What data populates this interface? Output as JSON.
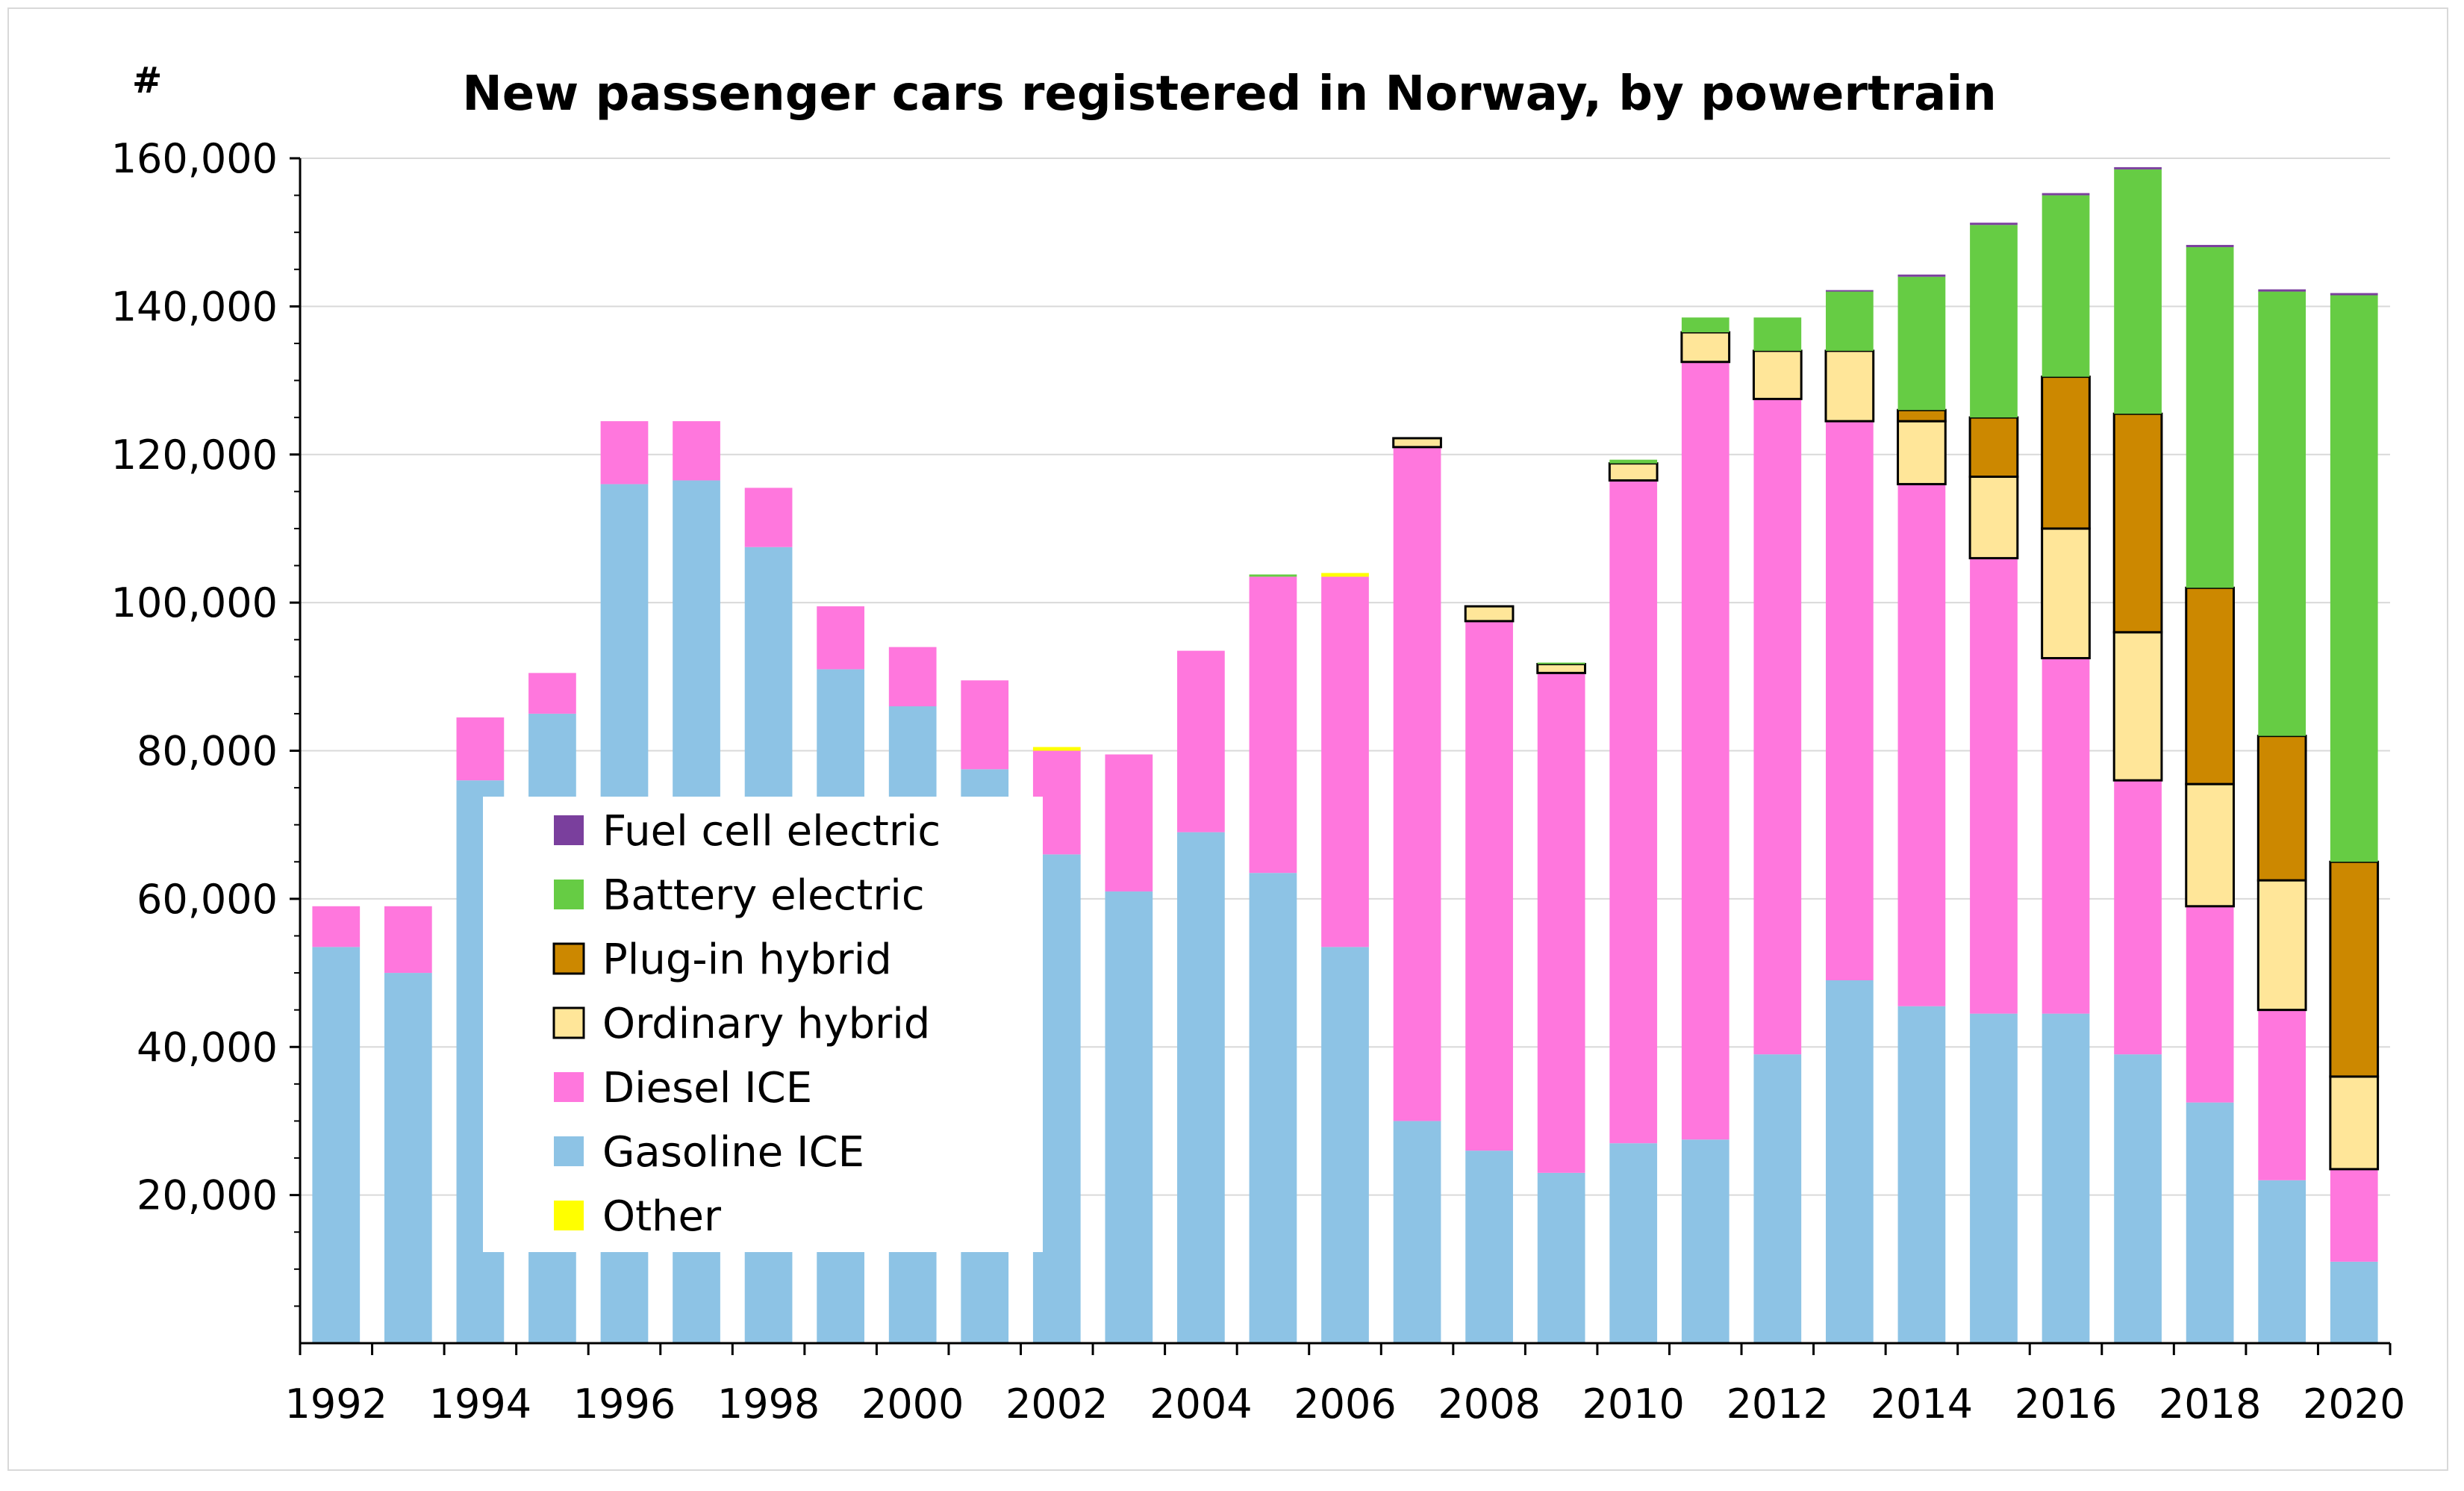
{
  "chart_data": {
    "type": "bar",
    "stacked": true,
    "title": "New passenger cars registered in Norway, by powertrain",
    "ylabel": "#",
    "xlabel": "",
    "ylim": [
      0,
      160000
    ],
    "yticks": [
      20000,
      40000,
      60000,
      80000,
      100000,
      120000,
      140000,
      160000
    ],
    "ytick_labels": [
      "20,000",
      "40,000",
      "60,000",
      "80,000",
      "100,000",
      "120,000",
      "140,000",
      "160,000"
    ],
    "grid": true,
    "legend_position": "center-left",
    "categories": [
      "1992",
      "1993",
      "1994",
      "1995",
      "1996",
      "1997",
      "1998",
      "1999",
      "2000",
      "2001",
      "2002",
      "2003",
      "2004",
      "2005",
      "2006",
      "2007",
      "2008",
      "2009",
      "2010",
      "2011",
      "2012",
      "2013",
      "2014",
      "2015",
      "2016",
      "2017",
      "2018",
      "2019",
      "2020"
    ],
    "xtick_labels": [
      "1992",
      "1994",
      "1996",
      "1998",
      "2000",
      "2002",
      "2004",
      "2006",
      "2008",
      "2010",
      "2012",
      "2014",
      "2016",
      "2018",
      "2020"
    ],
    "series": [
      {
        "name": "Gasoline ICE",
        "color": "#8dc3e5",
        "outlined": false,
        "values": [
          53500,
          50000,
          76000,
          85000,
          116000,
          116500,
          107500,
          91000,
          86000,
          77500,
          66000,
          61000,
          69000,
          63500,
          53500,
          30000,
          26000,
          23000,
          27000,
          27500,
          39000,
          49000,
          45500,
          44500,
          44500,
          39000,
          32500,
          22000,
          11000
        ]
      },
      {
        "name": "Diesel ICE",
        "color": "#ff77dd",
        "outlined": false,
        "values": [
          5500,
          9000,
          8500,
          5500,
          8500,
          8000,
          8000,
          8500,
          8000,
          12000,
          14000,
          18500,
          24500,
          40000,
          50000,
          91000,
          71500,
          67500,
          89500,
          105000,
          88500,
          75500,
          70500,
          61500,
          48000,
          37000,
          26500,
          23000,
          12500
        ]
      },
      {
        "name": "Ordinary hybrid",
        "color": "#ffe699",
        "outlined": true,
        "values": [
          0,
          0,
          0,
          0,
          0,
          0,
          0,
          0,
          0,
          0,
          0,
          0,
          0,
          0,
          0,
          1200,
          2000,
          1200,
          2300,
          4000,
          6500,
          9500,
          8500,
          11000,
          17500,
          20000,
          16500,
          17500,
          12500
        ]
      },
      {
        "name": "Plug-in hybrid",
        "color": "#cc8800",
        "outlined": true,
        "values": [
          0,
          0,
          0,
          0,
          0,
          0,
          0,
          0,
          0,
          0,
          0,
          0,
          0,
          0,
          0,
          0,
          0,
          0,
          0,
          0,
          0,
          0,
          1500,
          8000,
          20500,
          29500,
          26500,
          19500,
          29000
        ]
      },
      {
        "name": "Battery electric",
        "color": "#66cc44",
        "outlined": false,
        "values": [
          0,
          0,
          0,
          0,
          0,
          0,
          0,
          0,
          0,
          0,
          0,
          0,
          0,
          300,
          0,
          0,
          0,
          200,
          500,
          2000,
          4500,
          8000,
          18000,
          26000,
          24500,
          33000,
          46000,
          60000,
          76500
        ]
      },
      {
        "name": "Fuel cell electric",
        "color": "#7a3f9d",
        "outlined": false,
        "values": [
          0,
          0,
          0,
          0,
          0,
          0,
          0,
          0,
          0,
          0,
          0,
          0,
          0,
          0,
          0,
          0,
          0,
          0,
          0,
          0,
          0,
          200,
          300,
          300,
          300,
          300,
          300,
          300,
          300
        ]
      },
      {
        "name": "Other",
        "color": "#ffff00",
        "outlined": false,
        "values": [
          0,
          0,
          0,
          0,
          0,
          0,
          0,
          0,
          0,
          0,
          500,
          0,
          0,
          0,
          500,
          0,
          0,
          0,
          0,
          0,
          0,
          0,
          0,
          0,
          0,
          0,
          0,
          0,
          0
        ]
      }
    ],
    "legend_order": [
      "Fuel cell electric",
      "Battery electric",
      "Plug-in hybrid",
      "Ordinary hybrid",
      "Diesel ICE",
      "Gasoline ICE",
      "Other"
    ]
  }
}
